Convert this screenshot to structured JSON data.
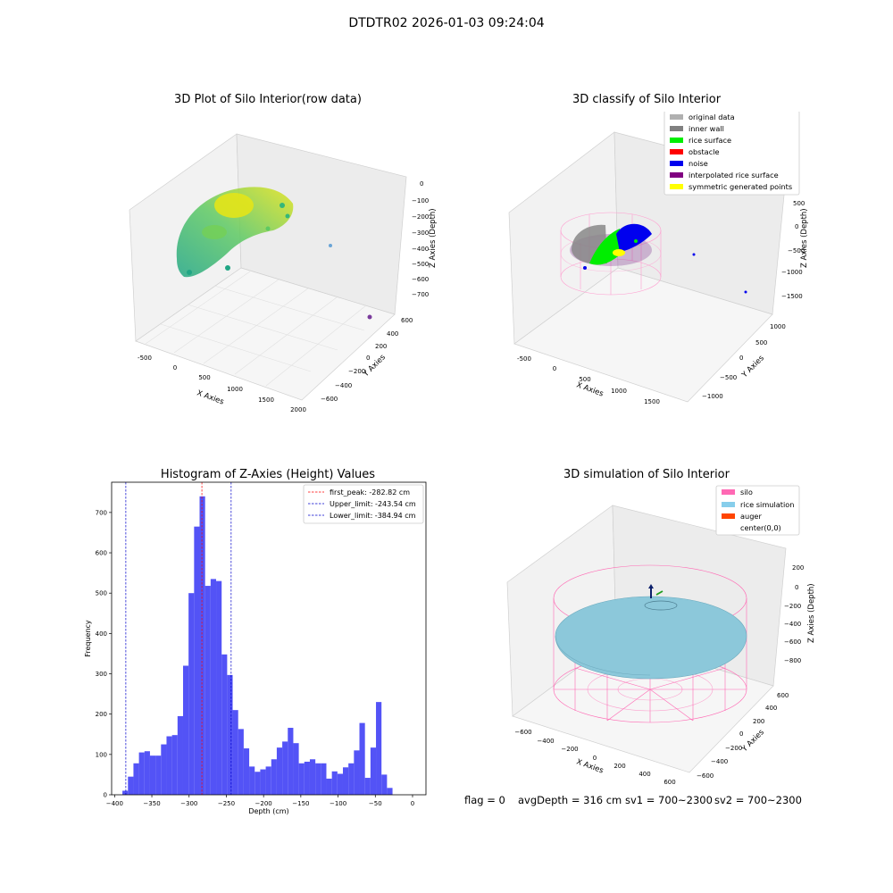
{
  "figure": {
    "title": "DTDTR02 2026-01-03 09:24:04",
    "status": {
      "flag": "flag = 0",
      "avg_depth": "avgDepth = 316 cm",
      "sv1": "sv1 = 700~2300",
      "sv2": "sv2 = 700~2300"
    }
  },
  "panels": {
    "raw": {
      "title": "3D Plot of Silo Interior(row data)",
      "xlabel": "X Axies",
      "ylabel": "Y Axies",
      "zlabel": "Z Axies (Depth)",
      "xticks": [
        "-500",
        "0",
        "500",
        "1000",
        "1500",
        "2000"
      ],
      "yticks": [
        "600",
        "400",
        "200",
        "0",
        "−200",
        "−400",
        "−600"
      ],
      "zticks": [
        "0",
        "−100",
        "−200",
        "−300",
        "−400",
        "−500",
        "−600",
        "−700"
      ]
    },
    "classify": {
      "title": "3D classify of Silo Interior",
      "xlabel": "X Axies",
      "ylabel": "Y Axies",
      "zlabel": "Z Axies (Depth)",
      "xticks": [
        "-500",
        "0",
        "500",
        "1000",
        "1500"
      ],
      "yticks": [
        "1000",
        "500",
        "0",
        "−500",
        "−1000"
      ],
      "zticks": [
        "500",
        "0",
        "−500",
        "−1000",
        "−1500"
      ],
      "legend": [
        {
          "label": "original data",
          "color": "#b0b0b0"
        },
        {
          "label": "inner wall",
          "color": "#808080"
        },
        {
          "label": "rice surface",
          "color": "#00ee00"
        },
        {
          "label": "obstacle",
          "color": "#ff0000"
        },
        {
          "label": "noise",
          "color": "#0000ee"
        },
        {
          "label": "interpolated rice surface",
          "color": "#800080"
        },
        {
          "label": "symmetric generated points",
          "color": "#ffff00"
        }
      ]
    },
    "simulation": {
      "title": "3D simulation of Silo Interior",
      "xlabel": "X Axies",
      "ylabel": "Y Axies",
      "zlabel": "Z Axies (Depth)",
      "xticks": [
        "−600",
        "−400",
        "−200",
        "0",
        "200",
        "400",
        "600"
      ],
      "yticks": [
        "600",
        "400",
        "200",
        "0",
        "−200",
        "−400",
        "−600"
      ],
      "zticks": [
        "200",
        "0",
        "−200",
        "−400",
        "−600",
        "−800"
      ],
      "legend": [
        {
          "label": "silo",
          "color": "#ff69b4"
        },
        {
          "label": "rice simulation",
          "color": "#87ceeb"
        },
        {
          "label": "auger",
          "color": "#ff4500"
        },
        {
          "label": "center(0,0)",
          "color": ""
        }
      ]
    }
  },
  "chart_data": {
    "type": "bar",
    "title": "Histogram of Z-Axies (Height) Values",
    "xlabel": "Depth (cm)",
    "ylabel": "Frequency",
    "xlim": [
      -404,
      18
    ],
    "ylim": [
      0,
      775
    ],
    "xticks": [
      -400,
      -350,
      -300,
      -250,
      -200,
      -150,
      -100,
      -50,
      0
    ],
    "xtick_labels": [
      "−400",
      "−350",
      "−300",
      "−250",
      "−200",
      "−150",
      "−100",
      "−50",
      "0"
    ],
    "yticks": [
      0,
      100,
      200,
      300,
      400,
      500,
      600,
      700
    ],
    "bar_color": "#4a4af5",
    "bin_start": -389.5,
    "bin_width": 7.4,
    "values": [
      10,
      45,
      78,
      105,
      108,
      97,
      97,
      125,
      145,
      148,
      195,
      320,
      500,
      665,
      740,
      518,
      535,
      530,
      348,
      297,
      210,
      163,
      115,
      70,
      57,
      63,
      70,
      88,
      117,
      132,
      166,
      128,
      78,
      82,
      88,
      78,
      78,
      40,
      58,
      52,
      68,
      78,
      110,
      178,
      42,
      117,
      230,
      50,
      17
    ],
    "vlines": [
      {
        "label": "first_peak: -282.82 cm",
        "value": -282.82,
        "color": "#ff0000"
      },
      {
        "label": "Upper_limit: -243.54 cm",
        "value": -243.54,
        "color": "#0000cc"
      },
      {
        "label": "Lower_limit: -384.94 cm",
        "value": -384.94,
        "color": "#0000cc"
      }
    ],
    "legend_position": "top-right",
    "grid": false
  }
}
